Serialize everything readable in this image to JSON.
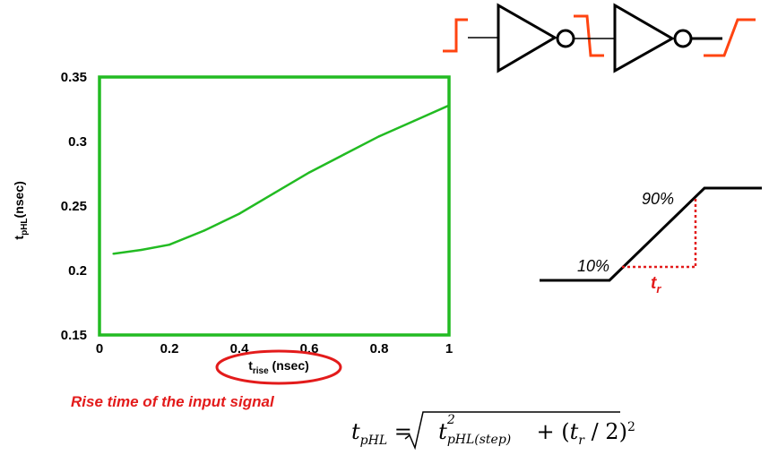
{
  "chart_data": {
    "type": "line",
    "title": "",
    "xlabel_main": "t",
    "xlabel_sub": "rise",
    "xlabel_unit": " (nsec)",
    "ylabel_main": "t",
    "ylabel_sub": "pHL",
    "ylabel_unit": "(nsec)",
    "xlim": [
      0,
      1
    ],
    "ylim": [
      0.15,
      0.35
    ],
    "x_ticks": [
      "0",
      "0.2",
      "0.4",
      "0.6",
      "0.8",
      "1"
    ],
    "y_ticks": [
      "0.35",
      "0.3",
      "0.25",
      "0.2",
      "0.15"
    ],
    "x": [
      0.04,
      0.12,
      0.2,
      0.3,
      0.4,
      0.5,
      0.6,
      0.7,
      0.8,
      0.9,
      1.0
    ],
    "y": [
      0.213,
      0.216,
      0.22,
      0.231,
      0.244,
      0.26,
      0.276,
      0.29,
      0.304,
      0.316,
      0.328
    ],
    "grid": false,
    "frame_color": "#22bb22",
    "line_color": "#22bb22",
    "highlight_color": "#e31b1b"
  },
  "caption": "Rise time of the input signal",
  "ramp": {
    "label_low": "10%",
    "label_high": "90%",
    "tr_main": "t",
    "tr_sub": "r"
  },
  "formula": {
    "lhs_main": "t",
    "lhs_sub": "pHL",
    "eq": "=",
    "rad_t": "t",
    "rad_sup": "2",
    "rad_sub": "pHL(step)",
    "plus": "+",
    "paren_open": "(",
    "tr_main": "t",
    "tr_sub": "r",
    "div": "/ 2",
    "paren_close": ")",
    "outer_sup": "2"
  },
  "circuit": {
    "signal_color": "#ff4411"
  }
}
